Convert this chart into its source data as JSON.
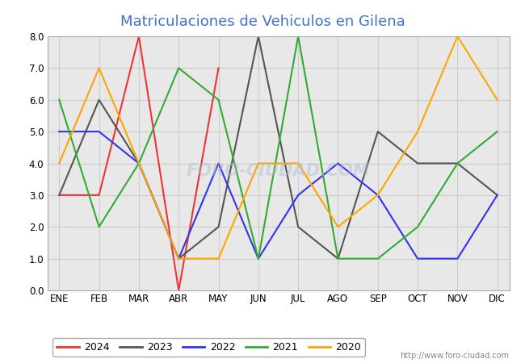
{
  "title": "Matriculaciones de Vehiculos en Gilena",
  "title_color": "#4472C4",
  "months": [
    "ENE",
    "FEB",
    "MAR",
    "ABR",
    "MAY",
    "JUN",
    "JUL",
    "AGO",
    "SEP",
    "OCT",
    "NOV",
    "DIC"
  ],
  "series": {
    "2024": {
      "color": "#EE3333",
      "data": [
        3,
        3,
        8,
        0,
        7,
        null,
        null,
        null,
        null,
        null,
        null,
        null
      ]
    },
    "2023": {
      "color": "#555555",
      "data": [
        3,
        6,
        4,
        1,
        2,
        8,
        2,
        1,
        5,
        4,
        4,
        3
      ]
    },
    "2022": {
      "color": "#3333EE",
      "data": [
        5,
        5,
        4,
        1,
        4,
        1,
        3,
        4,
        3,
        1,
        1,
        3
      ]
    },
    "2021": {
      "color": "#33AA33",
      "data": [
        6,
        2,
        4,
        7,
        6,
        1,
        8,
        1,
        1,
        2,
        4,
        5
      ]
    },
    "2020": {
      "color": "#FFA500",
      "data": [
        4,
        7,
        4,
        1,
        1,
        4,
        4,
        2,
        3,
        5,
        8,
        6
      ]
    }
  },
  "ylim": [
    0.0,
    8.0
  ],
  "yticks": [
    0.0,
    1.0,
    2.0,
    3.0,
    4.0,
    5.0,
    6.0,
    7.0,
    8.0
  ],
  "grid_color": "#CCCCCC",
  "figure_bg_color": "#FFFFFF",
  "plot_bg_color": "#E8E8E8",
  "watermark_text": "foro-ciudad.com",
  "watermark_color": "#AABBCC",
  "url": "http://www.foro-ciudad.com",
  "legend_years": [
    "2024",
    "2023",
    "2022",
    "2021",
    "2020"
  ],
  "title_fontsize": 13,
  "tick_fontsize": 8.5,
  "legend_fontsize": 9
}
